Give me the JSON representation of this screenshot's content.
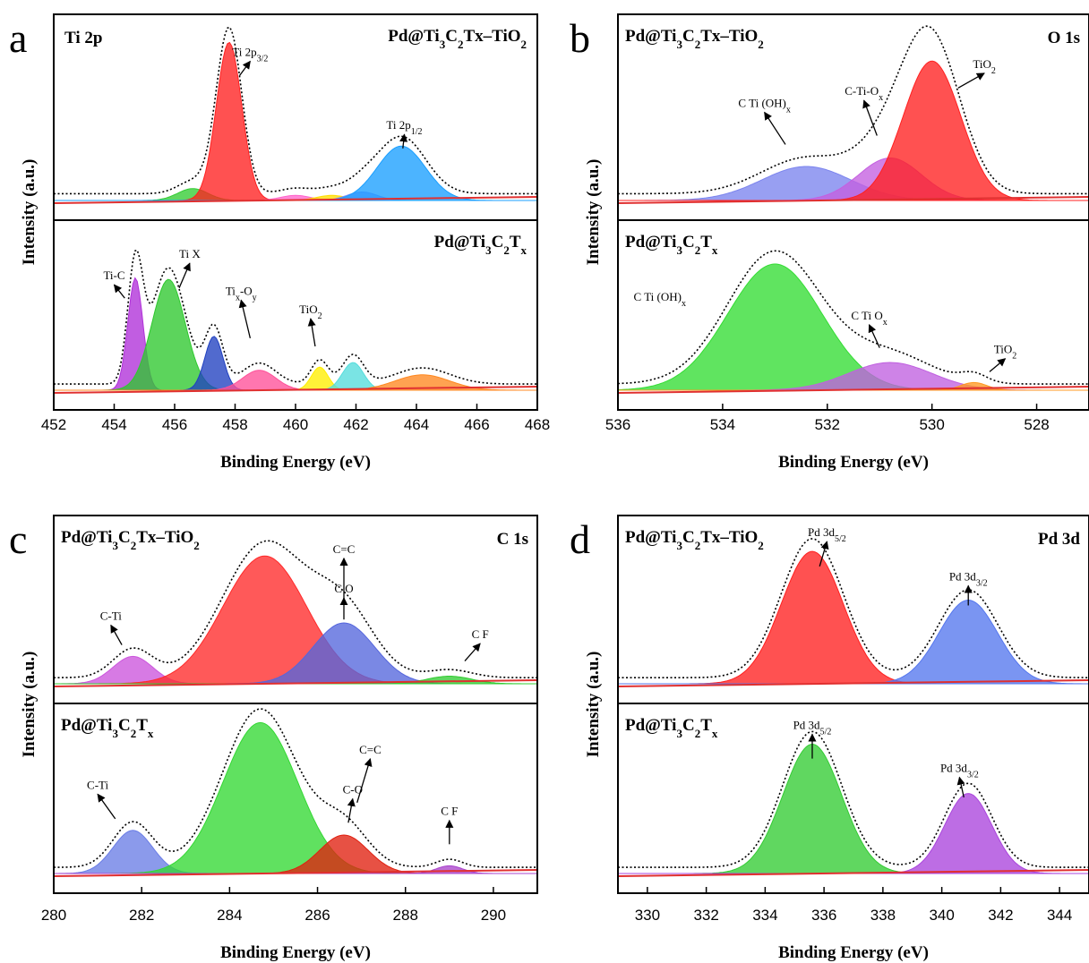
{
  "chart_data": [
    {
      "type": "area",
      "panel_letter": "a",
      "element_label": "Ti 2p",
      "xlabel": "Binding Energy (eV)",
      "ylabel": "Intensity (a.u.)",
      "xlim": [
        452,
        468
      ],
      "x_reversed": false,
      "x_ticks": [
        "452",
        "454",
        "456",
        "458",
        "460",
        "462",
        "464",
        "466",
        "468"
      ],
      "subplots": [
        {
          "sample": "Pd@Ti3C2Tx-TiO2",
          "peaks": [
            {
              "center": 456.6,
              "height": 0.07,
              "width": 0.5,
              "color": "#33cc33"
            },
            {
              "center": 457.8,
              "height": 0.93,
              "width": 0.42,
              "color": "#ff2020"
            },
            {
              "center": 460.0,
              "height": 0.03,
              "width": 0.5,
              "color": "#ff66cc"
            },
            {
              "center": 461.2,
              "height": 0.03,
              "width": 0.5,
              "color": "#ffdd00"
            },
            {
              "center": 462.2,
              "height": 0.05,
              "width": 0.5,
              "color": "#8888ff"
            },
            {
              "center": 463.5,
              "height": 0.32,
              "width": 0.8,
              "color": "#1a9fff"
            }
          ],
          "annotations": [
            {
              "text": "Ti 2p3/2",
              "x": 458.5,
              "y": 0.85
            },
            {
              "text": "Ti 2p1/2",
              "x": 463.6,
              "y": 0.42
            }
          ]
        },
        {
          "sample": "Pd@Ti3C2Tx",
          "peaks": [
            {
              "center": 454.7,
              "height": 0.73,
              "width": 0.25,
              "color": "#b030d8"
            },
            {
              "center": 455.8,
              "height": 0.72,
              "width": 0.55,
              "color": "#2ec82e"
            },
            {
              "center": 457.3,
              "height": 0.35,
              "width": 0.3,
              "color": "#2040c0"
            },
            {
              "center": 458.8,
              "height": 0.13,
              "width": 0.55,
              "color": "#ff5099"
            },
            {
              "center": 460.8,
              "height": 0.15,
              "width": 0.28,
              "color": "#ffee00"
            },
            {
              "center": 461.9,
              "height": 0.18,
              "width": 0.35,
              "color": "#55dddd"
            },
            {
              "center": 464.2,
              "height": 0.1,
              "width": 0.9,
              "color": "#ff8820"
            }
          ],
          "annotations": [
            {
              "text": "Ti-C",
              "x": 454.0,
              "y": 0.72
            },
            {
              "text": "Ti X",
              "x": 456.5,
              "y": 0.86
            },
            {
              "text": "Tix-Oy",
              "x": 458.2,
              "y": 0.62
            },
            {
              "text": "TiO2",
              "x": 460.5,
              "y": 0.5
            }
          ]
        }
      ]
    },
    {
      "type": "area",
      "panel_letter": "b",
      "element_label": "O 1s",
      "xlabel": "Binding Energy (eV)",
      "ylabel": "Intensity (a.u.)",
      "xlim": [
        536,
        527
      ],
      "x_reversed": true,
      "x_ticks": [
        "536",
        "534",
        "532",
        "530",
        "528"
      ],
      "subplots": [
        {
          "sample": "Pd@Ti3C2Tx-TiO2",
          "peaks": [
            {
              "center": 532.4,
              "height": 0.2,
              "width": 0.85,
              "color": "#7b84ee"
            },
            {
              "center": 530.8,
              "height": 0.25,
              "width": 0.6,
              "color": "#c45fe0"
            },
            {
              "center": 530.0,
              "height": 0.82,
              "width": 0.55,
              "color": "#ff2020"
            }
          ],
          "annotations": [
            {
              "text": "C Ti (OH)x",
              "x": 533.2,
              "y": 0.55
            },
            {
              "text": "C-Ti-Ox",
              "x": 531.3,
              "y": 0.62
            },
            {
              "text": "TiO2",
              "x": 529.0,
              "y": 0.78
            }
          ]
        },
        {
          "sample": "Pd@Ti3C2Tx",
          "peaks": [
            {
              "center": 533.0,
              "height": 0.82,
              "width": 0.9,
              "color": "#33dd33"
            },
            {
              "center": 530.8,
              "height": 0.18,
              "width": 0.8,
              "color": "#c060e0"
            },
            {
              "center": 529.2,
              "height": 0.05,
              "width": 0.25,
              "color": "#ff9922"
            }
          ],
          "annotations": [
            {
              "text": "C Ti (OH)x",
              "x": 535.2,
              "y": 0.58
            },
            {
              "text": "C Ti Ox",
              "x": 531.2,
              "y": 0.46
            },
            {
              "text": "TiO2",
              "x": 528.6,
              "y": 0.24
            }
          ]
        }
      ]
    },
    {
      "type": "area",
      "panel_letter": "c",
      "element_label": "C 1s",
      "xlabel": "Binding Energy (eV)",
      "ylabel": "Intensity (a.u.)",
      "xlim": [
        280,
        291
      ],
      "x_reversed": false,
      "x_ticks": [
        "280",
        "282",
        "284",
        "286",
        "288",
        "290"
      ],
      "subplots": [
        {
          "sample": "Pd@Ti3C2Tx-TiO2",
          "peaks": [
            {
              "center": 281.8,
              "height": 0.18,
              "width": 0.45,
              "color": "#cc55dd"
            },
            {
              "center": 284.8,
              "height": 0.84,
              "width": 0.95,
              "color": "#ff2a2a"
            },
            {
              "center": 286.6,
              "height": 0.4,
              "width": 0.7,
              "color": "#5566dd"
            },
            {
              "center": 289.0,
              "height": 0.05,
              "width": 0.5,
              "color": "#33cc33"
            }
          ],
          "annotations": [
            {
              "text": "C-Ti",
              "x": 281.3,
              "y": 0.42
            },
            {
              "text": "C=C",
              "x": 286.6,
              "y": 0.86
            },
            {
              "text": "C O",
              "x": 286.6,
              "y": 0.6
            },
            {
              "text": "C F",
              "x": 289.7,
              "y": 0.3
            }
          ]
        },
        {
          "sample": "Pd@Ti3C2Tx",
          "peaks": [
            {
              "center": 281.8,
              "height": 0.28,
              "width": 0.45,
              "color": "#6a7de6"
            },
            {
              "center": 284.7,
              "height": 0.98,
              "width": 0.85,
              "color": "#33d833"
            },
            {
              "center": 286.6,
              "height": 0.25,
              "width": 0.55,
              "color": "#e02010"
            },
            {
              "center": 289.0,
              "height": 0.05,
              "width": 0.3,
              "color": "#aa44cc"
            }
          ],
          "annotations": [
            {
              "text": "C-Ti",
              "x": 281.0,
              "y": 0.55
            },
            {
              "text": "C=C",
              "x": 287.2,
              "y": 0.78
            },
            {
              "text": "C-O",
              "x": 286.8,
              "y": 0.52
            },
            {
              "text": "C F",
              "x": 289.0,
              "y": 0.38
            }
          ]
        }
      ]
    },
    {
      "type": "area",
      "panel_letter": "d",
      "element_label": "Pd 3d",
      "xlabel": "Binding Energy (eV)",
      "ylabel": "Intensity (a.u.)",
      "xlim": [
        329,
        345
      ],
      "x_reversed": false,
      "x_ticks": [
        "330",
        "332",
        "334",
        "336",
        "338",
        "340",
        "342",
        "344"
      ],
      "subplots": [
        {
          "sample": "Pd@Ti3C2Tx-TiO2",
          "peaks": [
            {
              "center": 335.6,
              "height": 0.87,
              "width": 1.05,
              "color": "#ff2020"
            },
            {
              "center": 340.9,
              "height": 0.55,
              "width": 1.0,
              "color": "#5577ee"
            }
          ],
          "annotations": [
            {
              "text": "Pd 3d5/2",
              "x": 336.1,
              "y": 0.97
            },
            {
              "text": "Pd 3d3/2",
              "x": 340.9,
              "y": 0.68
            }
          ]
        },
        {
          "sample": "Pd@Ti3C2Tx",
          "peaks": [
            {
              "center": 335.6,
              "height": 0.84,
              "width": 1.0,
              "color": "#33cc33"
            },
            {
              "center": 340.9,
              "height": 0.52,
              "width": 0.8,
              "color": "#aa44dd"
            }
          ],
          "annotations": [
            {
              "text": "Pd 3d5/2",
              "x": 335.6,
              "y": 0.94
            },
            {
              "text": "Pd 3d3/2",
              "x": 340.6,
              "y": 0.66
            }
          ]
        }
      ]
    }
  ]
}
